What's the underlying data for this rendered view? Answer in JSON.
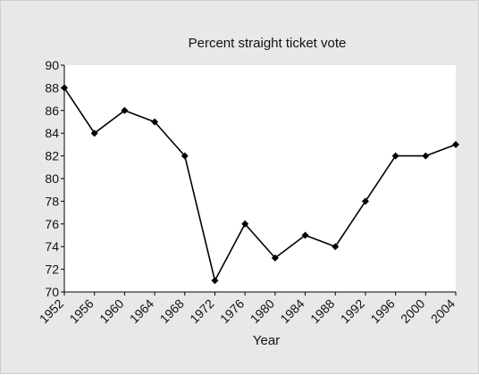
{
  "chart_data": {
    "type": "line",
    "title": "Percent straight ticket vote",
    "xlabel": "Year",
    "ylabel": "",
    "categories": [
      "1952",
      "1956",
      "1960",
      "1964",
      "1968",
      "1972",
      "1976",
      "1980",
      "1984",
      "1988",
      "1992",
      "1996",
      "2000",
      "2004"
    ],
    "series": [
      {
        "values": [
          88,
          84,
          86,
          85,
          82,
          71,
          76,
          73,
          75,
          74,
          78,
          82,
          82,
          83
        ]
      }
    ],
    "ylim": [
      70,
      90
    ],
    "yticks": [
      "70",
      "72",
      "74",
      "76",
      "78",
      "80",
      "82",
      "84",
      "86",
      "88",
      "90"
    ],
    "grid": false,
    "legend": "none",
    "colors": {
      "line": "#000000",
      "panel": "#e8e8e8",
      "plot": "#ffffff"
    },
    "marker": "diamond"
  }
}
